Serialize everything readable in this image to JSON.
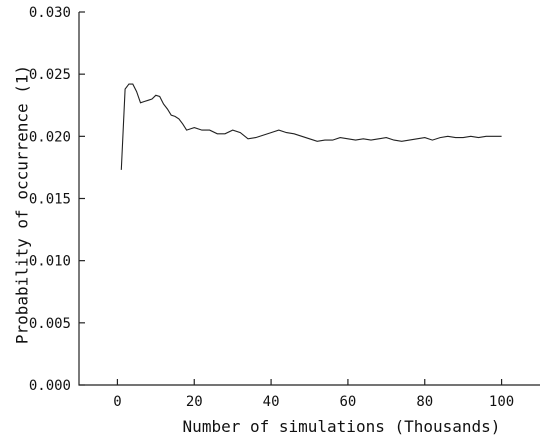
{
  "chart_data": {
    "type": "line",
    "title": "",
    "xlabel": "Number of simulations (Thousands)",
    "ylabel": "Probability of occurrence (1)",
    "xlim": [
      -10,
      110
    ],
    "ylim": [
      0.0,
      0.03
    ],
    "xticks": [
      0,
      20,
      40,
      60,
      80,
      100
    ],
    "xtick_labels": [
      "0",
      "20",
      "40",
      "60",
      "80",
      "100"
    ],
    "yticks": [
      0.0,
      0.005,
      0.01,
      0.015,
      0.02,
      0.025,
      0.03
    ],
    "ytick_labels": [
      "0.000",
      "0.005",
      "0.010",
      "0.015",
      "0.020",
      "0.025",
      "0.030"
    ],
    "grid": false,
    "legend": "none",
    "series": [
      {
        "color": "#222222",
        "x": [
          1,
          2,
          3,
          4,
          5,
          6,
          7,
          8,
          9,
          10,
          11,
          12,
          13,
          14,
          15,
          16,
          17,
          18,
          19,
          20,
          22,
          24,
          26,
          28,
          30,
          32,
          34,
          36,
          38,
          40,
          42,
          44,
          46,
          48,
          50,
          52,
          54,
          56,
          58,
          60,
          62,
          64,
          66,
          68,
          70,
          72,
          74,
          76,
          78,
          80,
          82,
          84,
          86,
          88,
          90,
          92,
          94,
          96,
          98,
          100
        ],
        "y": [
          0.0173,
          0.0238,
          0.0242,
          0.0242,
          0.0236,
          0.0227,
          0.0228,
          0.0229,
          0.023,
          0.0233,
          0.0232,
          0.0226,
          0.0222,
          0.0217,
          0.0216,
          0.0214,
          0.021,
          0.0205,
          0.0206,
          0.0207,
          0.0205,
          0.0205,
          0.0202,
          0.0202,
          0.0205,
          0.0203,
          0.0198,
          0.0199,
          0.0201,
          0.0203,
          0.0205,
          0.0203,
          0.0202,
          0.02,
          0.0198,
          0.0196,
          0.0197,
          0.0197,
          0.0199,
          0.0198,
          0.0197,
          0.0198,
          0.0197,
          0.0198,
          0.0199,
          0.0197,
          0.0196,
          0.0197,
          0.0198,
          0.0199,
          0.0197,
          0.0199,
          0.02,
          0.0199,
          0.0199,
          0.02,
          0.0199,
          0.02,
          0.02,
          0.02
        ]
      }
    ]
  }
}
